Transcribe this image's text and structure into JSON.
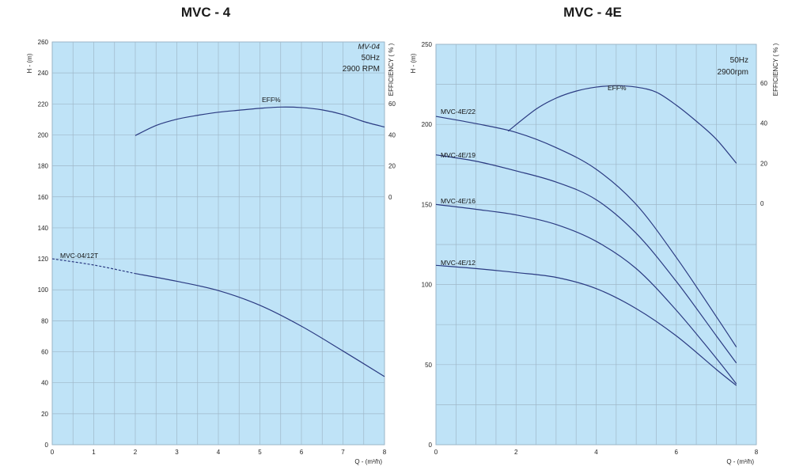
{
  "chart_data": [
    {
      "type": "line",
      "title": "MVC - 4",
      "xlabel": "Q - (m³/h)",
      "ylabel": "H - (m)",
      "y2label": "EFFICIENCY ( % )",
      "xlim": [
        0,
        8
      ],
      "ylim": [
        0,
        260
      ],
      "x_ticks": [
        0,
        1,
        2,
        3,
        4,
        5,
        6,
        7,
        8
      ],
      "y_ticks": [
        0,
        20,
        40,
        60,
        80,
        100,
        120,
        140,
        160,
        180,
        200,
        220,
        240,
        260
      ],
      "y2_ticks": [
        0,
        20,
        40,
        60
      ],
      "corner_lines": [
        "MV-04",
        "50Hz",
        "2900 RPM"
      ],
      "grid": true,
      "series": [
        {
          "name": "MVC-04/12T",
          "axis": "H",
          "x": [
            0,
            1,
            2,
            3,
            4,
            5,
            6,
            7,
            8
          ],
          "y": [
            120,
            116,
            110.5,
            105.5,
            99.5,
            90,
            76.5,
            60.5,
            44
          ]
        },
        {
          "name": "EFF%",
          "axis": "EFF",
          "x": [
            2,
            2.5,
            3,
            3.5,
            4,
            4.5,
            5,
            5.5,
            6,
            6.5,
            7,
            7.5,
            8
          ],
          "y": [
            39.5,
            46,
            50,
            52.5,
            54.5,
            55.8,
            57,
            57.8,
            57.5,
            56,
            53,
            48.5,
            45
          ]
        }
      ]
    },
    {
      "type": "line",
      "title": "MVC - 4E",
      "xlabel": "Q - (m³/h)",
      "ylabel": "H - (m)",
      "y2label": "EFFICIENCY ( % )",
      "xlim": [
        0,
        8
      ],
      "ylim": [
        0,
        250
      ],
      "x_ticks": [
        0,
        2,
        4,
        6,
        8
      ],
      "y_ticks": [
        0,
        50,
        100,
        150,
        200,
        250
      ],
      "y2_ticks": [
        0,
        20,
        40,
        60
      ],
      "corner_lines": [
        "50Hz",
        "2900rpm"
      ],
      "grid": true,
      "series": [
        {
          "name": "MVC-4E/22",
          "axis": "H",
          "x": [
            0,
            1,
            2,
            3,
            4,
            5,
            6,
            7,
            7.5
          ],
          "y": [
            205,
            200.5,
            195,
            185.5,
            172,
            150,
            117,
            80,
            61
          ]
        },
        {
          "name": "MVC-4E/19",
          "axis": "H",
          "x": [
            0,
            1,
            2,
            3,
            4,
            5,
            6,
            7,
            7.5
          ],
          "y": [
            181,
            177,
            171,
            164,
            153,
            132,
            102,
            68,
            51
          ]
        },
        {
          "name": "MVC-4E/16",
          "axis": "H",
          "x": [
            0,
            1,
            2,
            3,
            4,
            5,
            6,
            7,
            7.5
          ],
          "y": [
            150,
            147,
            143.5,
            137.5,
            127,
            110,
            84,
            54,
            38
          ]
        },
        {
          "name": "MVC-4E/12",
          "axis": "H",
          "x": [
            0,
            1,
            2,
            3,
            4,
            5,
            6,
            7,
            7.5
          ],
          "y": [
            112,
            110,
            107.5,
            104.5,
            97.5,
            85,
            68,
            47,
            37
          ]
        },
        {
          "name": "EFF%",
          "axis": "EFF",
          "x": [
            1.8,
            2.5,
            3,
            3.5,
            4,
            4.5,
            5,
            5.5,
            6,
            6.5,
            7,
            7.5
          ],
          "y": [
            36,
            47,
            52.5,
            56,
            58,
            58.7,
            58,
            55.5,
            49,
            41,
            32,
            20
          ]
        }
      ]
    }
  ]
}
